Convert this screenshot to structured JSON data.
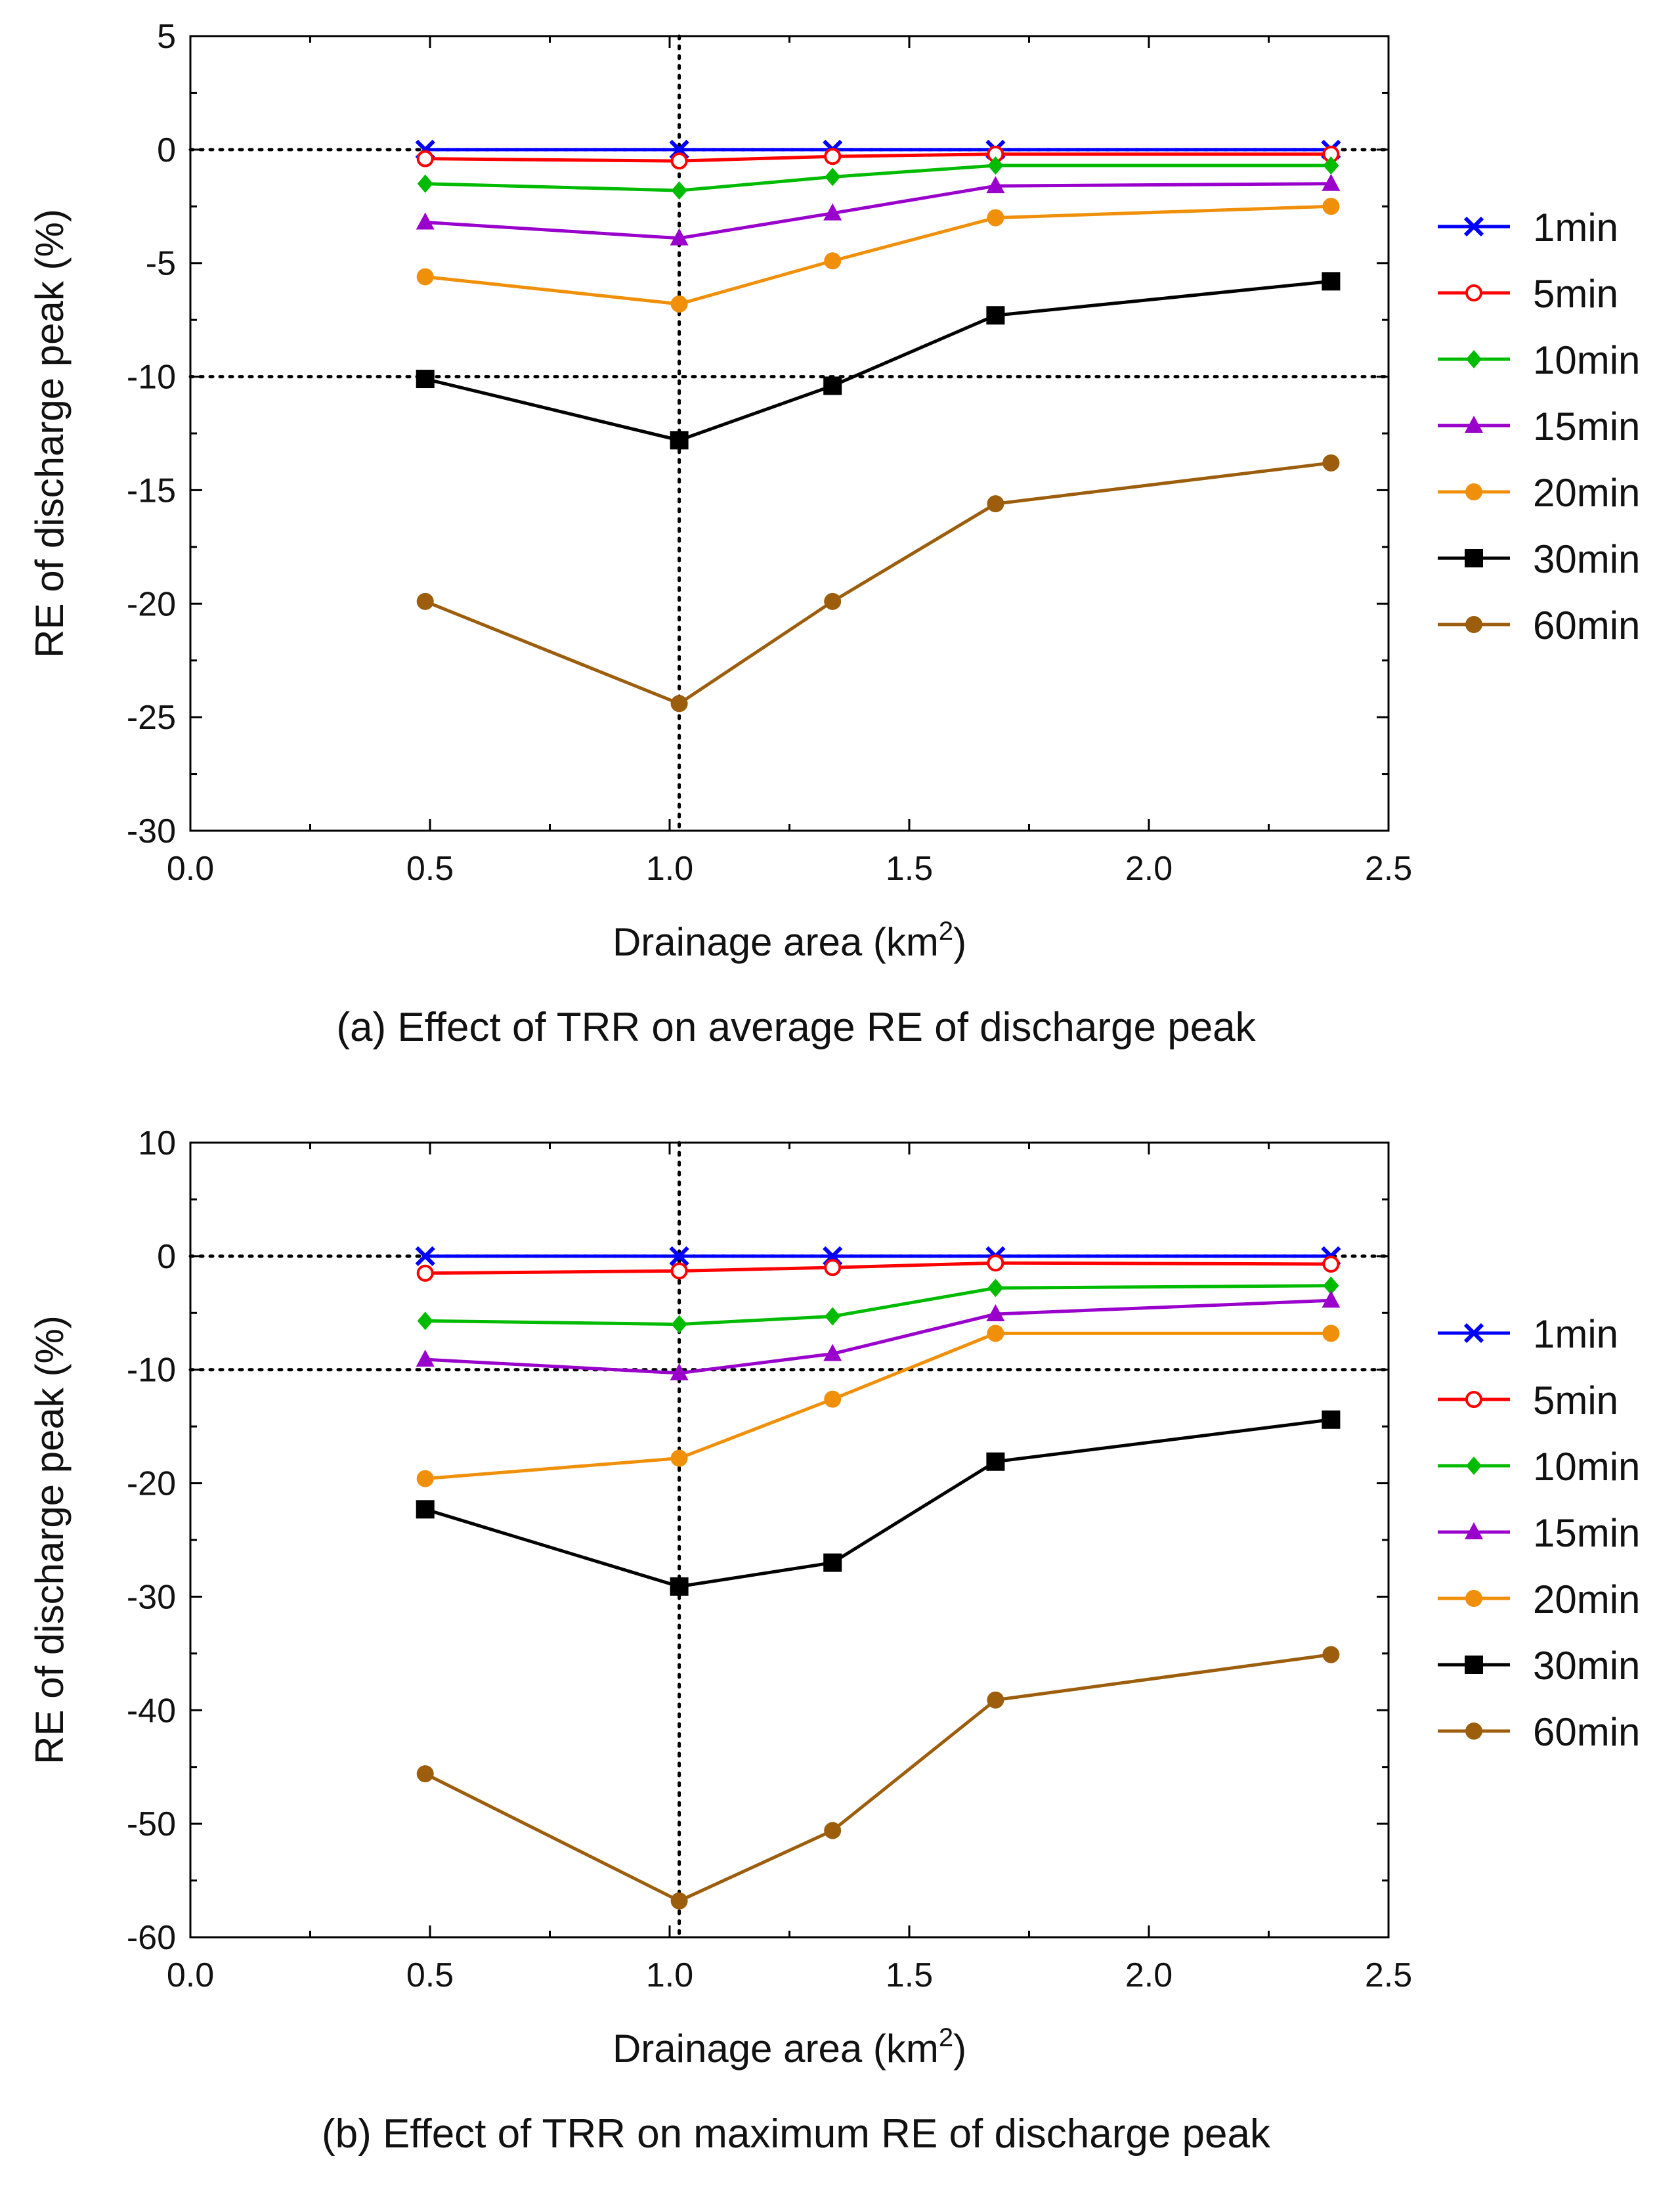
{
  "chart_data": [
    {
      "type": "line",
      "caption": "(a) Effect of TRR on average RE of discharge peak",
      "xlabel": "Drainage area (km",
      "xlabel_sup": "2",
      "xlabel_end": ")",
      "ylabel": "RE of discharge peak (%)",
      "xlim": [
        0.0,
        2.5
      ],
      "ylim": [
        -30,
        5
      ],
      "xticks": [
        0.0,
        0.5,
        1.0,
        1.5,
        2.0,
        2.5
      ],
      "xtick_labels": [
        "0.0",
        "0.5",
        "1.0",
        "1.5",
        "2.0",
        "2.5"
      ],
      "yticks": [
        -30,
        -25,
        -20,
        -15,
        -10,
        -5,
        0,
        5
      ],
      "ytick_labels": [
        "-30",
        "-25",
        "-20",
        "-15",
        "-10",
        "-5",
        "0",
        "5"
      ],
      "ref_lines": {
        "x": [
          1.02
        ],
        "y": [
          0,
          -10
        ]
      },
      "legend_position": "right",
      "x": [
        0.49,
        1.02,
        1.34,
        1.68,
        2.38
      ],
      "series": [
        {
          "name": "1min",
          "color": "#0000ff",
          "marker": "x",
          "values": [
            0.0,
            0.0,
            0.0,
            0.0,
            0.0
          ]
        },
        {
          "name": "5min",
          "color": "#ff0000",
          "marker": "circle-open",
          "values": [
            -0.4,
            -0.5,
            -0.3,
            -0.2,
            -0.2
          ]
        },
        {
          "name": "10min",
          "color": "#00bb00",
          "marker": "diamond",
          "values": [
            -1.5,
            -1.8,
            -1.2,
            -0.7,
            -0.7
          ]
        },
        {
          "name": "15min",
          "color": "#9900cc",
          "marker": "triangle",
          "values": [
            -3.2,
            -3.9,
            -2.8,
            -1.6,
            -1.5
          ]
        },
        {
          "name": "20min",
          "color": "#f0900a",
          "marker": "circle",
          "values": [
            -5.6,
            -6.8,
            -4.9,
            -3.0,
            -2.5
          ]
        },
        {
          "name": "30min",
          "color": "#000000",
          "marker": "square",
          "values": [
            -10.1,
            -12.8,
            -10.4,
            -7.3,
            -5.8
          ]
        },
        {
          "name": "60min",
          "color": "#9c5e0c",
          "marker": "circle",
          "values": [
            -19.9,
            -24.4,
            -19.9,
            -15.6,
            -13.8
          ]
        }
      ]
    },
    {
      "type": "line",
      "caption": "(b) Effect of TRR on maximum RE of discharge peak",
      "xlabel": "Drainage area (km",
      "xlabel_sup": "2",
      "xlabel_end": ")",
      "ylabel": "RE of discharge peak (%)",
      "xlim": [
        0.0,
        2.5
      ],
      "ylim": [
        -60,
        10
      ],
      "xticks": [
        0.0,
        0.5,
        1.0,
        1.5,
        2.0,
        2.5
      ],
      "xtick_labels": [
        "0.0",
        "0.5",
        "1.0",
        "1.5",
        "2.0",
        "2.5"
      ],
      "yticks": [
        -60,
        -50,
        -40,
        -30,
        -20,
        -10,
        0,
        10
      ],
      "ytick_labels": [
        "-60",
        "-50",
        "-40",
        "-30",
        "-20",
        "-10",
        "0",
        "10"
      ],
      "ref_lines": {
        "x": [
          1.02
        ],
        "y": [
          0,
          -10
        ]
      },
      "legend_position": "right",
      "x": [
        0.49,
        1.02,
        1.34,
        1.68,
        2.38
      ],
      "series": [
        {
          "name": "1min",
          "color": "#0000ff",
          "marker": "x",
          "values": [
            0.0,
            0.0,
            0.0,
            0.0,
            0.0
          ]
        },
        {
          "name": "5min",
          "color": "#ff0000",
          "marker": "circle-open",
          "values": [
            -1.5,
            -1.3,
            -1.0,
            -0.6,
            -0.7
          ]
        },
        {
          "name": "10min",
          "color": "#00bb00",
          "marker": "diamond",
          "values": [
            -5.7,
            -6.0,
            -5.3,
            -2.8,
            -2.6
          ]
        },
        {
          "name": "15min",
          "color": "#9900cc",
          "marker": "triangle",
          "values": [
            -9.1,
            -10.3,
            -8.6,
            -5.1,
            -3.9
          ]
        },
        {
          "name": "20min",
          "color": "#f0900a",
          "marker": "circle",
          "values": [
            -19.6,
            -17.8,
            -12.6,
            -6.8,
            -6.8
          ]
        },
        {
          "name": "30min",
          "color": "#000000",
          "marker": "square",
          "values": [
            -22.3,
            -29.1,
            -27.0,
            -18.1,
            -14.4
          ]
        },
        {
          "name": "60min",
          "color": "#9c5e0c",
          "marker": "circle",
          "values": [
            -45.6,
            -56.8,
            -50.6,
            -39.1,
            -35.1
          ]
        }
      ]
    }
  ]
}
